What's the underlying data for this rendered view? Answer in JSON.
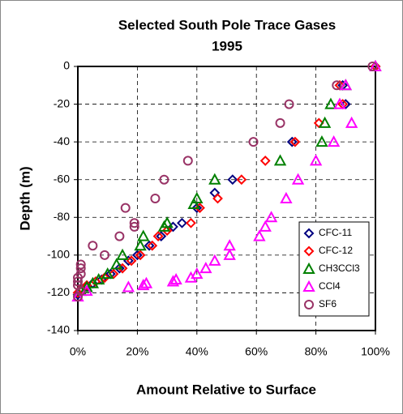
{
  "chart_data": {
    "type": "scatter",
    "title": "Selected South Pole Trace Gases",
    "subtitle": "1995",
    "xlabel": "Amount Relative to Surface",
    "ylabel": "Depth (m)",
    "xlim": [
      0,
      100
    ],
    "xticks": [
      {
        "value": 0,
        "label": "0%"
      },
      {
        "value": 20,
        "label": "20%"
      },
      {
        "value": 40,
        "label": "40%"
      },
      {
        "value": 60,
        "label": "60%"
      },
      {
        "value": 80,
        "label": "80%"
      },
      {
        "value": 100,
        "label": "100%"
      }
    ],
    "ylim": [
      -140,
      0
    ],
    "yticks": [
      0,
      -20,
      -40,
      -60,
      -80,
      -100,
      -120,
      -140
    ],
    "grid": true,
    "legend": "lower right",
    "series": [
      {
        "name": "CFC-11",
        "color": "#000080",
        "marker": "diamond",
        "x": [
          100,
          89,
          90,
          72,
          52,
          46,
          40,
          35,
          32,
          28,
          24,
          20,
          17,
          14,
          11,
          8,
          5,
          3,
          1,
          0
        ],
        "values": [
          0,
          -10,
          -20,
          -40,
          -60,
          -67,
          -75,
          -83,
          -85,
          -90,
          -95,
          -100,
          -103,
          -107,
          -110,
          -113,
          -115,
          -117,
          -119,
          -121
        ]
      },
      {
        "name": "CFC-12",
        "color": "#ff0000",
        "marker": "diamond",
        "x": [
          100,
          88,
          89,
          81,
          73,
          63,
          55,
          47,
          41,
          38,
          30,
          27,
          25,
          21,
          18,
          15,
          12,
          9,
          6,
          3,
          1,
          0
        ],
        "values": [
          0,
          -10,
          -20,
          -30,
          -40,
          -50,
          -60,
          -70,
          -75,
          -83,
          -87,
          -90,
          -95,
          -100,
          -103,
          -107,
          -110,
          -112,
          -114,
          -116,
          -118,
          -120
        ]
      },
      {
        "name": "CH3CCl3",
        "color": "#008000",
        "marker": "triangle",
        "x": [
          100,
          90,
          85,
          83,
          82,
          68,
          46,
          40,
          39,
          30,
          29,
          22,
          21,
          15,
          13,
          10,
          7,
          5,
          3,
          1
        ],
        "values": [
          0,
          -10,
          -20,
          -30,
          -40,
          -50,
          -60,
          -70,
          -73,
          -83,
          -85,
          -90,
          -95,
          -100,
          -105,
          -110,
          -113,
          -115,
          -117,
          -119
        ]
      },
      {
        "name": "CCl4",
        "color": "#ff00ff",
        "marker": "triangle",
        "x": [
          100,
          90,
          88,
          92,
          86,
          80,
          74,
          70,
          65,
          63,
          61,
          51,
          51,
          46,
          43,
          40,
          38,
          33,
          32,
          23,
          22,
          17,
          3,
          0
        ],
        "values": [
          0,
          -10,
          -20,
          -30,
          -40,
          -50,
          -60,
          -70,
          -80,
          -85,
          -90,
          -95,
          -100,
          -103,
          -107,
          -110,
          -112,
          -113,
          -114,
          -115,
          -116,
          -117,
          -119,
          -122
        ]
      },
      {
        "name": "SF6",
        "color": "#993366",
        "marker": "circle",
        "x": [
          99,
          87,
          71,
          68,
          59,
          37,
          29,
          26,
          16,
          19,
          19,
          14,
          5,
          9,
          1,
          1,
          1,
          0,
          0,
          0,
          1,
          0
        ],
        "values": [
          0,
          -10,
          -20,
          -30,
          -40,
          -50,
          -60,
          -70,
          -75,
          -83,
          -85,
          -90,
          -95,
          -100,
          -105,
          -107,
          -110,
          -112,
          -114,
          -116,
          -119,
          -122
        ]
      }
    ]
  }
}
